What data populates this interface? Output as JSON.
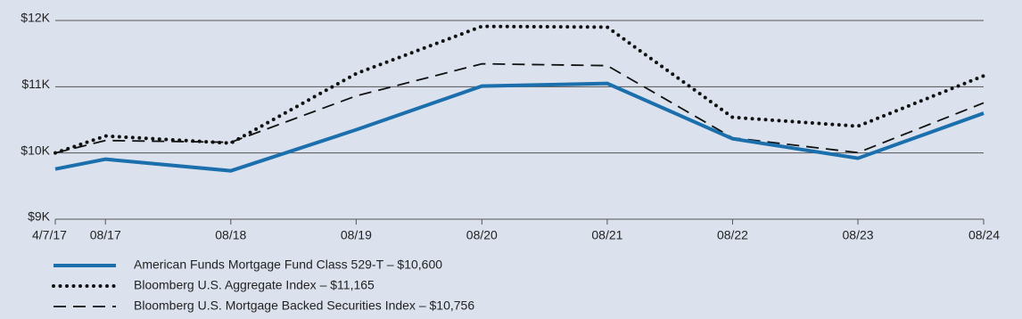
{
  "chart_data": {
    "type": "line",
    "x": [
      "4/7/17",
      "08/17",
      "08/18",
      "08/19",
      "08/20",
      "08/21",
      "08/22",
      "08/23",
      "08/24"
    ],
    "ylim": [
      9000,
      12000
    ],
    "yticks": [
      {
        "value": 9000,
        "label": "$9K"
      },
      {
        "value": 10000,
        "label": "$10K"
      },
      {
        "value": 11000,
        "label": "$11K"
      },
      {
        "value": 12000,
        "label": "$12K"
      }
    ],
    "grid": true,
    "series": [
      {
        "name": "American Funds Mortgage Fund Class 529-T – $10,600",
        "color": "#1b6fad",
        "dash": "solid",
        "values": [
          9758,
          9906,
          9731,
          10350,
          11010,
          11050,
          10215,
          9920,
          10600
        ]
      },
      {
        "name": "Bloomberg U.S. Aggregate Index – $11,165",
        "color": "#111111",
        "dash": "dotted",
        "values": [
          10000,
          10256,
          10148,
          11198,
          11911,
          11900,
          10538,
          10404,
          11165
        ]
      },
      {
        "name": "Bloomberg U.S. Mortgage Backed Securities Index – $10,756",
        "color": "#111111",
        "dash": "dashed",
        "values": [
          10000,
          10188,
          10161,
          10861,
          11346,
          11319,
          10229,
          10005,
          10756
        ]
      }
    ]
  }
}
